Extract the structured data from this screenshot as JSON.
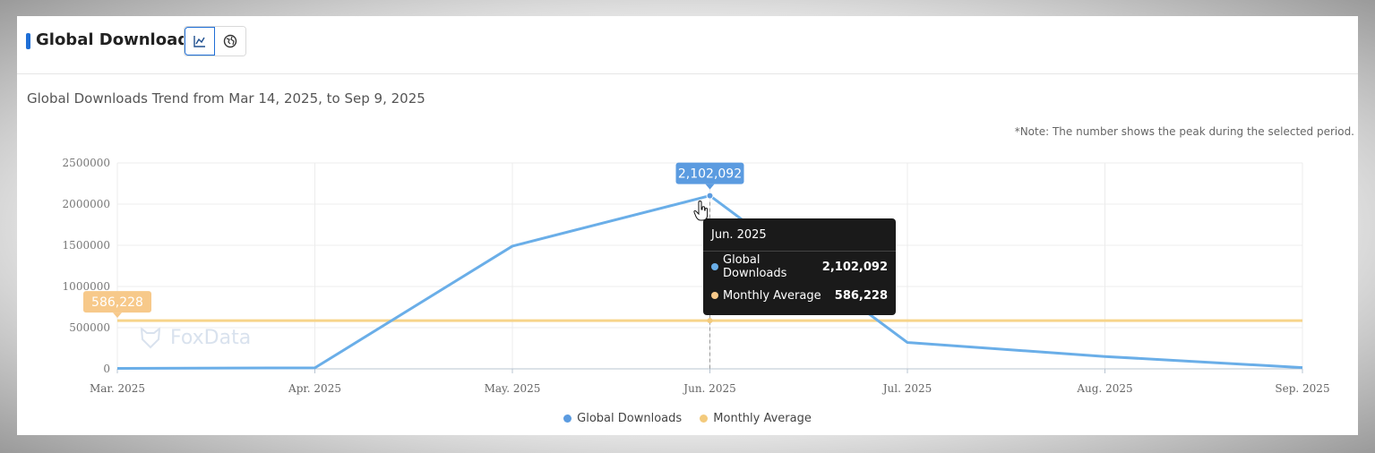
{
  "header": {
    "title": "Global Downloads",
    "view_buttons": [
      {
        "icon": "line-chart-icon",
        "active": true
      },
      {
        "icon": "globe-icon",
        "active": false
      }
    ]
  },
  "subtitle": "Global Downloads Trend from Mar 14, 2025, to Sep 9, 2025",
  "note": "*Note: The number shows the peak during the selected period.",
  "watermark": "FoxData",
  "chart_data": {
    "type": "line",
    "x": [
      "Mar. 2025",
      "Apr. 2025",
      "May. 2025",
      "Jun. 2025",
      "Jul. 2025",
      "Aug. 2025",
      "Sep. 2025"
    ],
    "y_ticks": [
      "2500000",
      "2000000",
      "1500000",
      "1000000",
      "500000",
      "0"
    ],
    "ylim": [
      0,
      2500000
    ],
    "grid": true,
    "series": [
      {
        "name": "Global Downloads",
        "color": "#6aaee8",
        "values": [
          5000,
          12000,
          1490000,
          2102092,
          320000,
          150000,
          15000
        ],
        "peak_label": "2,102,092"
      },
      {
        "name": "Monthly Average",
        "color": "#f7d48a",
        "values": [
          586228,
          586228,
          586228,
          586228,
          586228,
          586228,
          586228
        ],
        "peak_label": "586,228"
      }
    ],
    "legend_position": "bottom"
  },
  "tooltip": {
    "title": "Jun. 2025",
    "rows": [
      {
        "name": "Global Downloads",
        "value": "2,102,092",
        "color": "#6aaee8"
      },
      {
        "name": "Monthly Average",
        "value": "586,228",
        "color": "#f7c98a"
      }
    ]
  }
}
